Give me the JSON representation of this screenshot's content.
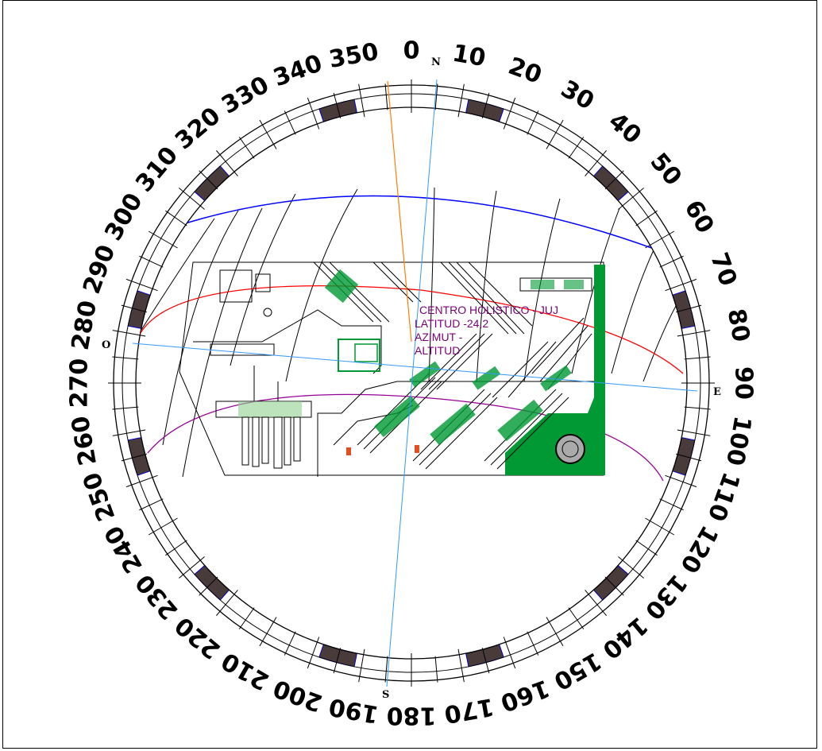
{
  "compass": {
    "cardinals": {
      "north": "N",
      "south": "S",
      "east": "E",
      "west": "O"
    },
    "degree_labels": [
      {
        "deg": 0,
        "text": "0"
      },
      {
        "deg": 10,
        "text": "10"
      },
      {
        "deg": 20,
        "text": "20"
      },
      {
        "deg": 30,
        "text": "30"
      },
      {
        "deg": 40,
        "text": "40"
      },
      {
        "deg": 50,
        "text": "50"
      },
      {
        "deg": 60,
        "text": "60"
      },
      {
        "deg": 70,
        "text": "70"
      },
      {
        "deg": 80,
        "text": "80"
      },
      {
        "deg": 90,
        "text": "90"
      },
      {
        "deg": 100,
        "text": "100"
      },
      {
        "deg": 110,
        "text": "110"
      },
      {
        "deg": 120,
        "text": "120"
      },
      {
        "deg": 130,
        "text": "130"
      },
      {
        "deg": 140,
        "text": "140"
      },
      {
        "deg": 150,
        "text": "150"
      },
      {
        "deg": 160,
        "text": "160"
      },
      {
        "deg": 170,
        "text": "170"
      },
      {
        "deg": 180,
        "text": "180"
      },
      {
        "deg": 190,
        "text": "190"
      },
      {
        "deg": 200,
        "text": "200"
      },
      {
        "deg": 210,
        "text": "210"
      },
      {
        "deg": 220,
        "text": "220"
      },
      {
        "deg": 230,
        "text": "230"
      },
      {
        "deg": 240,
        "text": "240"
      },
      {
        "deg": 250,
        "text": "250"
      },
      {
        "deg": 260,
        "text": "260"
      },
      {
        "deg": 270,
        "text": "270"
      },
      {
        "deg": 280,
        "text": "280"
      },
      {
        "deg": 290,
        "text": "290"
      },
      {
        "deg": 300,
        "text": "300"
      },
      {
        "deg": 310,
        "text": "310"
      },
      {
        "deg": 320,
        "text": "320"
      },
      {
        "deg": 330,
        "text": "330"
      },
      {
        "deg": 340,
        "text": "340"
      },
      {
        "deg": 350,
        "text": "350"
      }
    ]
  },
  "plan": {
    "info_lines": [
      "CENTRO HOLISTICO - JUJ",
      "LATITUD  -24,2",
      "AZIMUT  -",
      "ALTITUD",
      ""
    ]
  },
  "colors": {
    "sun_path_summer": "#0000ff",
    "sun_path_equinox": "#ff0000",
    "sun_path_winter": "#990099",
    "orientation_line": "#ff8000",
    "axis_line": "#3399ff",
    "ring_block": "#4a3b3b",
    "ring_block_edge": "#0000cc",
    "landscape": "#009933"
  }
}
